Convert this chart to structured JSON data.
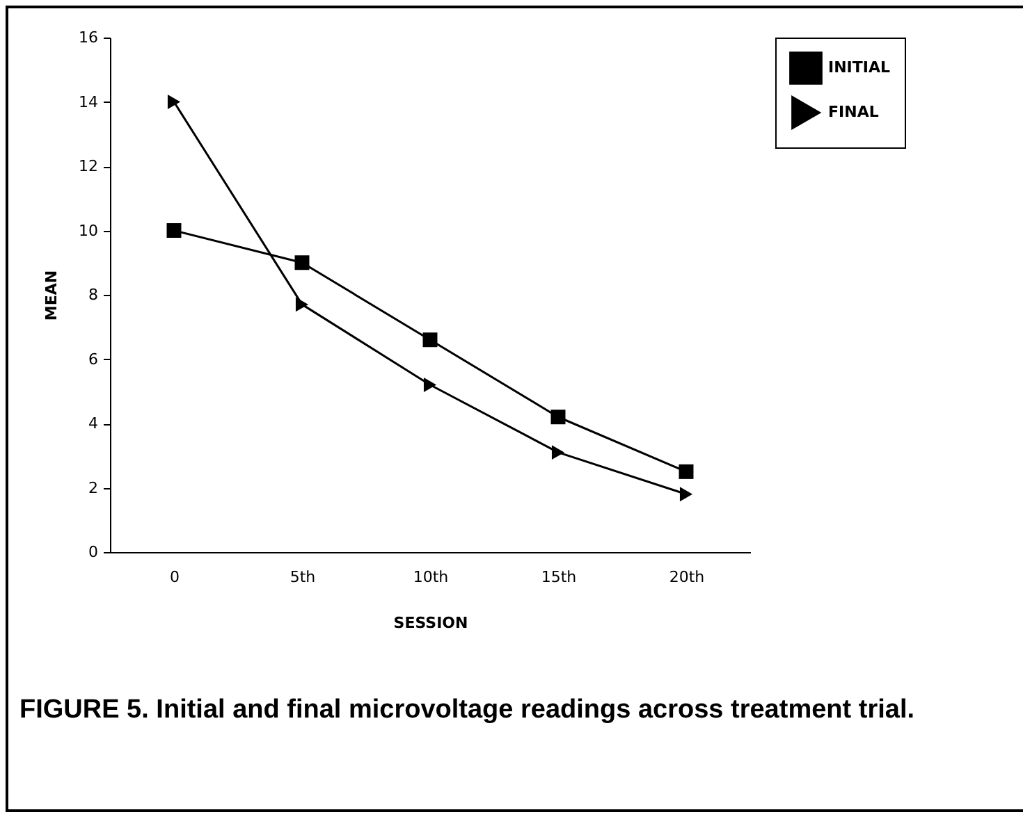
{
  "chart_data": {
    "type": "line",
    "xlabel": "SESSION",
    "ylabel": "MEAN",
    "categories": [
      "0",
      "5th",
      "10th",
      "15th",
      "20th"
    ],
    "series": [
      {
        "name": "INITIAL",
        "color": "#000000",
        "marker": "square",
        "values": [
          10,
          9,
          6.6,
          4.2,
          2.5
        ]
      },
      {
        "name": "FINAL",
        "color": "#000000",
        "marker": "triangle",
        "values": [
          14,
          7.7,
          5.2,
          3.1,
          1.8
        ]
      }
    ],
    "ylim": [
      0,
      16
    ],
    "yticks": [
      0,
      2,
      4,
      6,
      8,
      10,
      12,
      14,
      16
    ],
    "grid": false,
    "legend": "top right",
    "annotations": [
      "FIGURE 5. Initial and final microvoltage readings across treatment trial."
    ]
  }
}
